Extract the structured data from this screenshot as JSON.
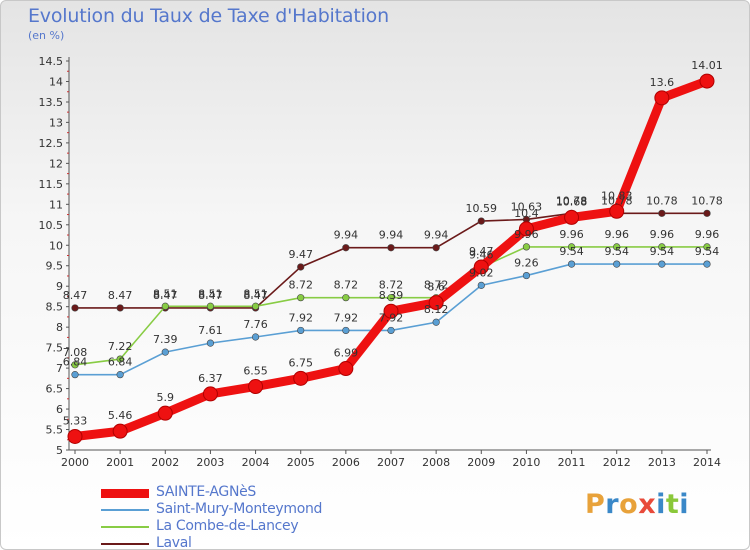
{
  "title": "Evolution du Taux de Taxe d'Habitation",
  "subtitle": "(en %)",
  "logo": {
    "text": "Proxiti",
    "colors": [
      "#e8a23a",
      "#3a88c8",
      "#e8a23a",
      "#e84a3a",
      "#3a88c8",
      "#8ac83a",
      "#3a88c8"
    ]
  },
  "chart_data": {
    "type": "line",
    "x": [
      "2000",
      "2001",
      "2002",
      "2003",
      "2004",
      "2005",
      "2006",
      "2007",
      "2008",
      "2009",
      "2010",
      "2011",
      "2012",
      "2013",
      "2014"
    ],
    "ylim": [
      5,
      14.5
    ],
    "yticks": [
      "5",
      "5.5",
      "6",
      "6.5",
      "7",
      "7.5",
      "8",
      "8.5",
      "9",
      "9.5",
      "10",
      "10.5",
      "11",
      "11.5",
      "12",
      "12.5",
      "13",
      "13.5",
      "14",
      "14.5"
    ],
    "grid": false,
    "legend_position": "bottom",
    "series": [
      {
        "name": "Laval",
        "color": "#6b1a1a",
        "values": [
          8.47,
          8.47,
          8.47,
          8.47,
          8.47,
          9.47,
          9.94,
          9.94,
          9.94,
          10.59,
          10.63,
          10.78,
          10.78,
          10.78,
          10.78
        ],
        "labels": [
          "8.47",
          "8.47",
          "8.47",
          "8.47",
          "8.47",
          "9.47",
          "9.94",
          "9.94",
          "9.94",
          "10.59",
          "10.63",
          "10.78",
          "10.78",
          "10.78",
          "10.78"
        ]
      },
      {
        "name": "La Combe-de-Lancey",
        "color": "#88cc44",
        "values": [
          7.08,
          7.22,
          8.51,
          8.51,
          8.51,
          8.72,
          8.72,
          8.72,
          8.72,
          9.46,
          9.96,
          9.96,
          9.96,
          9.96,
          9.96
        ],
        "labels": [
          "7.08",
          "7.22",
          "8.51",
          "8.51",
          "8.51",
          "8.72",
          "8.72",
          "8.72",
          "8.72",
          "9.46",
          "9.96",
          "9.96",
          "9.96",
          "9.96",
          "9.96"
        ]
      },
      {
        "name": "Saint-Mury-Monteymond",
        "color": "#5a9fd4",
        "values": [
          6.84,
          6.84,
          7.39,
          7.61,
          7.76,
          7.92,
          7.92,
          7.92,
          8.12,
          9.02,
          9.26,
          9.54,
          9.54,
          9.54,
          9.54
        ],
        "labels": [
          "6.84",
          "6.84",
          "7.39",
          "7.61",
          "7.76",
          "7.92",
          "7.92",
          "7.92",
          "8.12",
          "9.02",
          "9.26",
          "9.54",
          "9.54",
          "9.54",
          "9.54"
        ]
      },
      {
        "name": "SAINTE-AGNèS",
        "color": "#ee1111",
        "values": [
          5.33,
          5.46,
          5.9,
          6.37,
          6.55,
          6.75,
          6.99,
          8.39,
          8.6,
          9.47,
          10.4,
          10.68,
          10.83,
          13.6,
          14.01
        ],
        "labels": [
          "5.33",
          "5.46",
          "5.9",
          "6.37",
          "6.55",
          "6.75",
          "6.99",
          "8.39",
          "8.6",
          "9.47",
          "10.4",
          "10.68",
          "10.83",
          "13.6",
          "14.01"
        ]
      }
    ],
    "legend_order": [
      "SAINTE-AGNèS",
      "Saint-Mury-Monteymond",
      "La Combe-de-Lancey",
      "Laval"
    ]
  }
}
